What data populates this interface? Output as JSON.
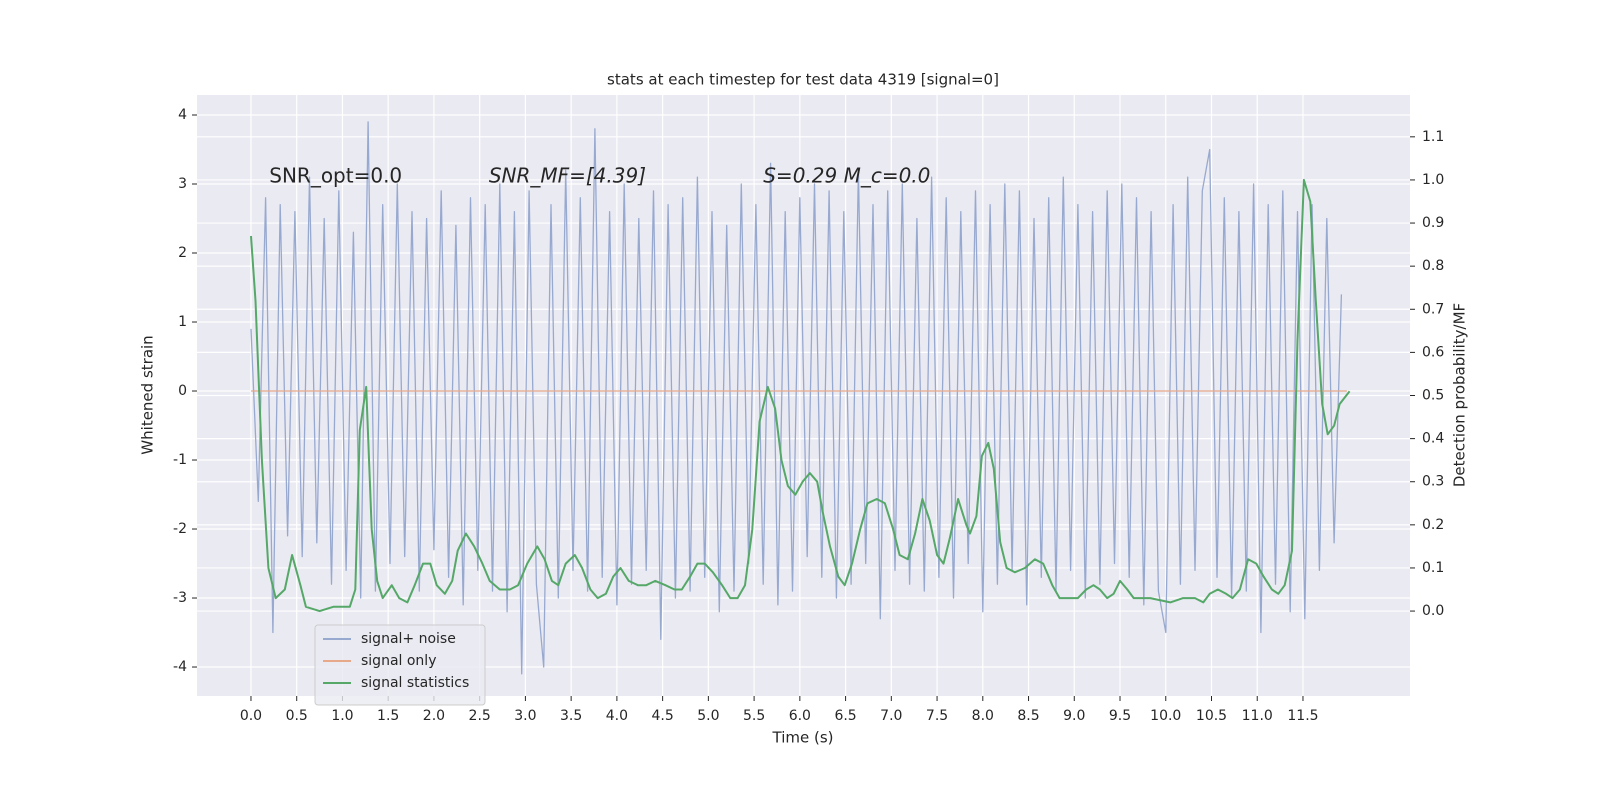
{
  "chart_data": {
    "type": "line",
    "title": "stats at each timestep for test data 4319 [signal=0]",
    "xlabel": "Time (s)",
    "ylabel": "Whitened strain",
    "y2label": "Detection probability/MF",
    "annotations": [
      {
        "text": "SNR_opt=0.0",
        "x": 0.2,
        "y": 3.1,
        "italic": false
      },
      {
        "text": "SNR_MF=[4.39]",
        "x": 2.6,
        "y": 3.1,
        "italic": true
      },
      {
        "text": "S=0.29  M_c=0.0",
        "x": 5.6,
        "y": 3.1,
        "italic": true
      }
    ],
    "xlim": [
      -0.59,
      12.67
    ],
    "ylim": [
      -4.42,
      4.29
    ],
    "y2lim": [
      -0.197,
      1.197
    ],
    "xticks": [
      {
        "value": 0,
        "label": "0.0"
      },
      {
        "value": 0.5,
        "label": "0.5"
      },
      {
        "value": 1,
        "label": "1.0"
      },
      {
        "value": 1.5,
        "label": "1.5"
      },
      {
        "value": 2,
        "label": "2.0"
      },
      {
        "value": 2.5,
        "label": "2.5"
      },
      {
        "value": 3,
        "label": "3.0"
      },
      {
        "value": 3.5,
        "label": "3.5"
      },
      {
        "value": 4,
        "label": "4.0"
      },
      {
        "value": 4.5,
        "label": "4.5"
      },
      {
        "value": 5,
        "label": "5.0"
      },
      {
        "value": 5.5,
        "label": "5.5"
      },
      {
        "value": 6,
        "label": "6.0"
      },
      {
        "value": 6.5,
        "label": "6.5"
      },
      {
        "value": 7,
        "label": "7.0"
      },
      {
        "value": 7.5,
        "label": "7.5"
      },
      {
        "value": 8,
        "label": "8.0"
      },
      {
        "value": 8.5,
        "label": "8.5"
      },
      {
        "value": 9,
        "label": "9.0"
      },
      {
        "value": 9.5,
        "label": "9.5"
      },
      {
        "value": 10,
        "label": "10.0"
      },
      {
        "value": 10.5,
        "label": "10.5"
      },
      {
        "value": 11,
        "label": "11.0"
      },
      {
        "value": 11.5,
        "label": "11.5"
      }
    ],
    "yticks": [
      -4,
      -3,
      -2,
      -1,
      0,
      1,
      2,
      3,
      4
    ],
    "y2ticks": [
      {
        "value": 0,
        "label": "0.0"
      },
      {
        "value": 0.1,
        "label": "0.1"
      },
      {
        "value": 0.2,
        "label": "0.2"
      },
      {
        "value": 0.3,
        "label": "0.3"
      },
      {
        "value": 0.4,
        "label": "0.4"
      },
      {
        "value": 0.5,
        "label": "0.5"
      },
      {
        "value": 0.6,
        "label": "0.6"
      },
      {
        "value": 0.7,
        "label": "0.7"
      },
      {
        "value": 0.8,
        "label": "0.8"
      },
      {
        "value": 0.9,
        "label": "0.9"
      },
      {
        "value": 1,
        "label": "1.0"
      },
      {
        "value": 1.1,
        "label": "1.1"
      }
    ],
    "grid": true,
    "legend": "lower left",
    "series": [
      {
        "name": "signal+ noise",
        "color": "#98a9d0",
        "x": [
          0,
          0.08,
          0.16,
          0.24,
          0.32,
          0.4,
          0.48,
          0.56,
          0.64,
          0.72,
          0.8,
          0.88,
          0.96,
          1.04,
          1.12,
          1.2,
          1.28,
          1.36,
          1.44,
          1.52,
          1.6,
          1.68,
          1.76,
          1.84,
          1.92,
          2,
          2.08,
          2.16,
          2.24,
          2.32,
          2.4,
          2.48,
          2.56,
          2.64,
          2.72,
          2.8,
          2.88,
          2.96,
          3.04,
          3.12,
          3.2,
          3.28,
          3.36,
          3.44,
          3.52,
          3.6,
          3.68,
          3.76,
          3.84,
          3.92,
          4,
          4.08,
          4.16,
          4.24,
          4.32,
          4.4,
          4.48,
          4.56,
          4.64,
          4.72,
          4.8,
          4.88,
          4.96,
          5.04,
          5.12,
          5.2,
          5.28,
          5.36,
          5.44,
          5.52,
          5.6,
          5.68,
          5.76,
          5.84,
          5.92,
          6,
          6.08,
          6.16,
          6.24,
          6.32,
          6.4,
          6.48,
          6.56,
          6.64,
          6.72,
          6.8,
          6.88,
          6.96,
          7.04,
          7.12,
          7.2,
          7.28,
          7.36,
          7.44,
          7.52,
          7.6,
          7.68,
          7.76,
          7.84,
          7.92,
          8,
          8.08,
          8.16,
          8.24,
          8.32,
          8.4,
          8.48,
          8.56,
          8.64,
          8.72,
          8.8,
          8.88,
          8.96,
          9.04,
          9.12,
          9.2,
          9.28,
          9.36,
          9.44,
          9.52,
          9.6,
          9.68,
          9.76,
          9.84,
          9.92,
          10,
          10.08,
          10.16,
          10.24,
          10.32,
          10.4,
          10.48,
          10.56,
          10.64,
          10.72,
          10.8,
          10.88,
          10.96,
          11.04,
          11.12,
          11.2,
          11.28,
          11.36,
          11.44,
          11.52,
          11.6,
          11.68,
          11.76,
          11.84,
          11.92
        ],
        "values": [
          0.9,
          -1.6,
          2.8,
          -3.5,
          2.7,
          -2.1,
          2.6,
          -2.4,
          3.1,
          -2.2,
          2.5,
          -2.8,
          2.9,
          -2.6,
          2.3,
          -3.0,
          3.9,
          -2.9,
          2.7,
          -2.5,
          3.0,
          -2.4,
          2.6,
          -2.9,
          2.5,
          -2.3,
          2.9,
          -2.7,
          2.4,
          -3.1,
          2.8,
          -2.6,
          2.7,
          -2.9,
          3.0,
          -3.2,
          2.6,
          -4.1,
          2.9,
          -2.8,
          -4.0,
          2.7,
          -3.0,
          3.2,
          -2.6,
          2.8,
          -2.9,
          3.8,
          -2.7,
          2.6,
          -3.1,
          3.0,
          -2.8,
          2.5,
          -2.6,
          2.9,
          -3.6,
          2.7,
          -3.0,
          2.8,
          -2.9,
          3.1,
          -2.7,
          2.6,
          -3.2,
          2.4,
          -2.9,
          3.0,
          -2.5,
          2.7,
          -2.8,
          3.3,
          -3.1,
          2.6,
          -2.9,
          2.8,
          -2.4,
          3.0,
          -2.7,
          2.9,
          -3.0,
          2.6,
          -2.8,
          3.2,
          -2.5,
          2.7,
          -3.3,
          2.9,
          -2.6,
          3.0,
          -2.8,
          2.5,
          -2.9,
          3.1,
          -2.7,
          2.8,
          -3.0,
          2.6,
          -2.5,
          2.9,
          -3.2,
          2.7,
          -2.8,
          3.0,
          -2.6,
          2.9,
          -3.1,
          2.5,
          -2.7,
          2.8,
          -2.9,
          3.1,
          -2.6,
          2.7,
          -3.0,
          2.6,
          -2.8,
          2.9,
          -2.5,
          3.0,
          -2.7,
          2.8,
          -3.1,
          2.6,
          -2.9,
          -3.5,
          2.7,
          -2.8,
          3.1,
          -2.6,
          2.9,
          3.5,
          -2.7,
          2.8,
          -3.0,
          2.6,
          -2.9,
          3.0,
          -3.5,
          2.7,
          -2.8,
          2.9,
          -3.2,
          2.6,
          -3.3,
          2.7,
          -2.6,
          2.5,
          -2.2,
          1.4
        ]
      },
      {
        "name": "signal only",
        "color": "#e8a88a",
        "x": [
          0,
          11.98
        ],
        "values": [
          0,
          0
        ]
      },
      {
        "name": "signal statistics",
        "color": "#55a868",
        "axis": "y2",
        "x": [
          0,
          0.05,
          0.12,
          0.19,
          0.27,
          0.37,
          0.45,
          0.54,
          0.6,
          0.75,
          0.9,
          1.01,
          1.08,
          1.14,
          1.19,
          1.26,
          1.32,
          1.38,
          1.44,
          1.54,
          1.62,
          1.71,
          1.79,
          1.88,
          1.96,
          2.03,
          2.12,
          2.2,
          2.26,
          2.35,
          2.44,
          2.53,
          2.61,
          2.72,
          2.83,
          2.92,
          3.02,
          3.13,
          3.21,
          3.29,
          3.36,
          3.44,
          3.54,
          3.62,
          3.71,
          3.79,
          3.88,
          3.96,
          4.04,
          4.13,
          4.23,
          4.32,
          4.42,
          4.53,
          4.63,
          4.71,
          4.8,
          4.88,
          4.96,
          5.05,
          5.15,
          5.24,
          5.32,
          5.4,
          5.48,
          5.56,
          5.65,
          5.73,
          5.8,
          5.87,
          5.95,
          6.03,
          6.11,
          6.19,
          6.25,
          6.33,
          6.42,
          6.49,
          6.57,
          6.66,
          6.74,
          6.84,
          6.93,
          7.02,
          7.09,
          7.18,
          7.26,
          7.34,
          7.42,
          7.5,
          7.57,
          7.64,
          7.73,
          7.82,
          7.86,
          7.93,
          7.99,
          8.06,
          8.12,
          8.19,
          8.26,
          8.35,
          8.46,
          8.57,
          8.66,
          8.76,
          8.84,
          8.95,
          9.04,
          9.13,
          9.21,
          9.28,
          9.36,
          9.43,
          9.5,
          9.58,
          9.65,
          9.83,
          10.05,
          10.19,
          10.32,
          10.41,
          10.48,
          10.57,
          10.66,
          10.73,
          10.81,
          10.9,
          10.99,
          11.07,
          11.16,
          11.23,
          11.3,
          11.38,
          11.44,
          11.51,
          11.58,
          11.64,
          11.71,
          11.77,
          11.84,
          11.9,
          12.01
        ],
        "values": [
          0.87,
          0.72,
          0.35,
          0.1,
          0.03,
          0.05,
          0.13,
          0.06,
          0.01,
          0,
          0.01,
          0.01,
          0.01,
          0.05,
          0.42,
          0.52,
          0.19,
          0.07,
          0.03,
          0.06,
          0.03,
          0.02,
          0.06,
          0.11,
          0.11,
          0.06,
          0.04,
          0.07,
          0.14,
          0.18,
          0.15,
          0.11,
          0.07,
          0.05,
          0.05,
          0.06,
          0.11,
          0.15,
          0.12,
          0.07,
          0.06,
          0.11,
          0.13,
          0.1,
          0.05,
          0.03,
          0.04,
          0.08,
          0.1,
          0.07,
          0.06,
          0.06,
          0.07,
          0.06,
          0.05,
          0.05,
          0.08,
          0.11,
          0.11,
          0.09,
          0.06,
          0.03,
          0.03,
          0.06,
          0.19,
          0.44,
          0.52,
          0.47,
          0.35,
          0.29,
          0.27,
          0.3,
          0.32,
          0.3,
          0.23,
          0.15,
          0.08,
          0.06,
          0.11,
          0.19,
          0.25,
          0.26,
          0.25,
          0.19,
          0.13,
          0.12,
          0.18,
          0.26,
          0.21,
          0.13,
          0.11,
          0.17,
          0.26,
          0.2,
          0.18,
          0.22,
          0.36,
          0.39,
          0.33,
          0.16,
          0.1,
          0.09,
          0.1,
          0.12,
          0.11,
          0.06,
          0.03,
          0.03,
          0.03,
          0.05,
          0.06,
          0.05,
          0.03,
          0.04,
          0.07,
          0.05,
          0.03,
          0.03,
          0.02,
          0.03,
          0.03,
          0.02,
          0.04,
          0.05,
          0.04,
          0.03,
          0.05,
          0.12,
          0.11,
          0.08,
          0.05,
          0.04,
          0.06,
          0.14,
          0.63,
          1.0,
          0.95,
          0.72,
          0.48,
          0.41,
          0.43,
          0.48,
          0.51
        ]
      }
    ]
  }
}
